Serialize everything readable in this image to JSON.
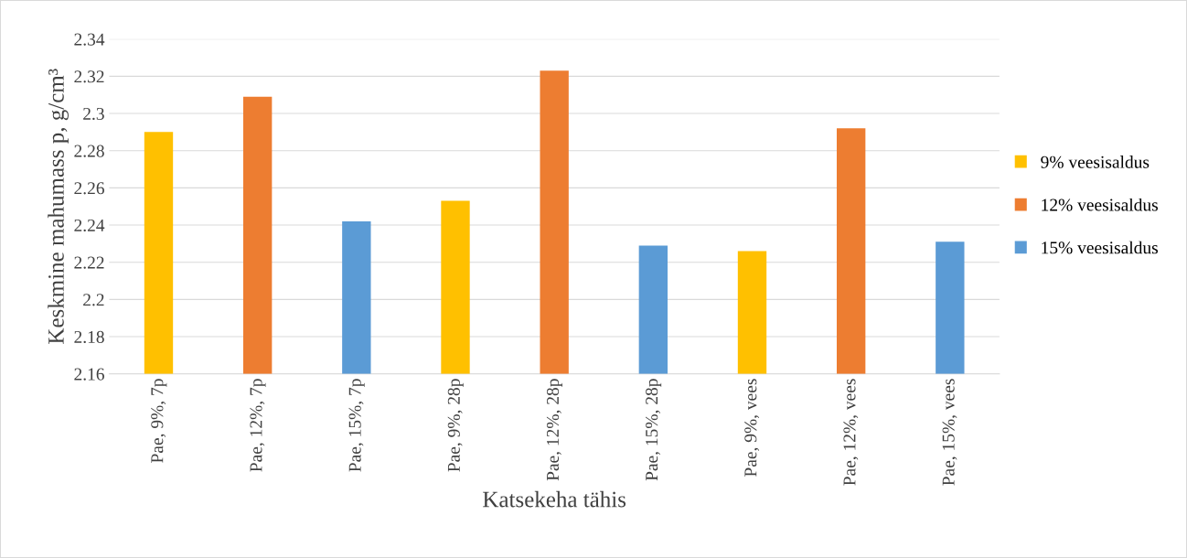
{
  "chart_data": {
    "type": "bar",
    "xlabel": "Katsekeha tähis",
    "ylabel": "Keskmine mahumass p, g/cm³",
    "categories": [
      "Pae, 9%, 7p",
      "Pae, 12%, 7p",
      "Pae, 15%, 7p",
      "Pae, 9%, 28p",
      "Pae, 12%, 28p",
      "Pae, 15%, 28p",
      "Pae, 9%, vees",
      "Pae, 12%, vees",
      "Pae, 15%, vees"
    ],
    "series": [
      {
        "name": "9% veesisaldus",
        "color": "#ffc000",
        "values": [
          2.29,
          null,
          null,
          2.253,
          null,
          null,
          2.226,
          null,
          null
        ]
      },
      {
        "name": "12% veesisaldus",
        "color": "#ed7d31",
        "values": [
          null,
          2.309,
          null,
          null,
          2.323,
          null,
          null,
          2.292,
          null
        ]
      },
      {
        "name": "15% veesisaldus",
        "color": "#5b9bd5",
        "values": [
          null,
          null,
          2.242,
          null,
          null,
          2.229,
          null,
          null,
          2.231
        ]
      }
    ],
    "ylim": [
      2.16,
      2.34
    ],
    "yticks": [
      2.16,
      2.18,
      2.2,
      2.22,
      2.24,
      2.26,
      2.28,
      2.3,
      2.32,
      2.34
    ],
    "grid": "y",
    "legend": "right"
  }
}
